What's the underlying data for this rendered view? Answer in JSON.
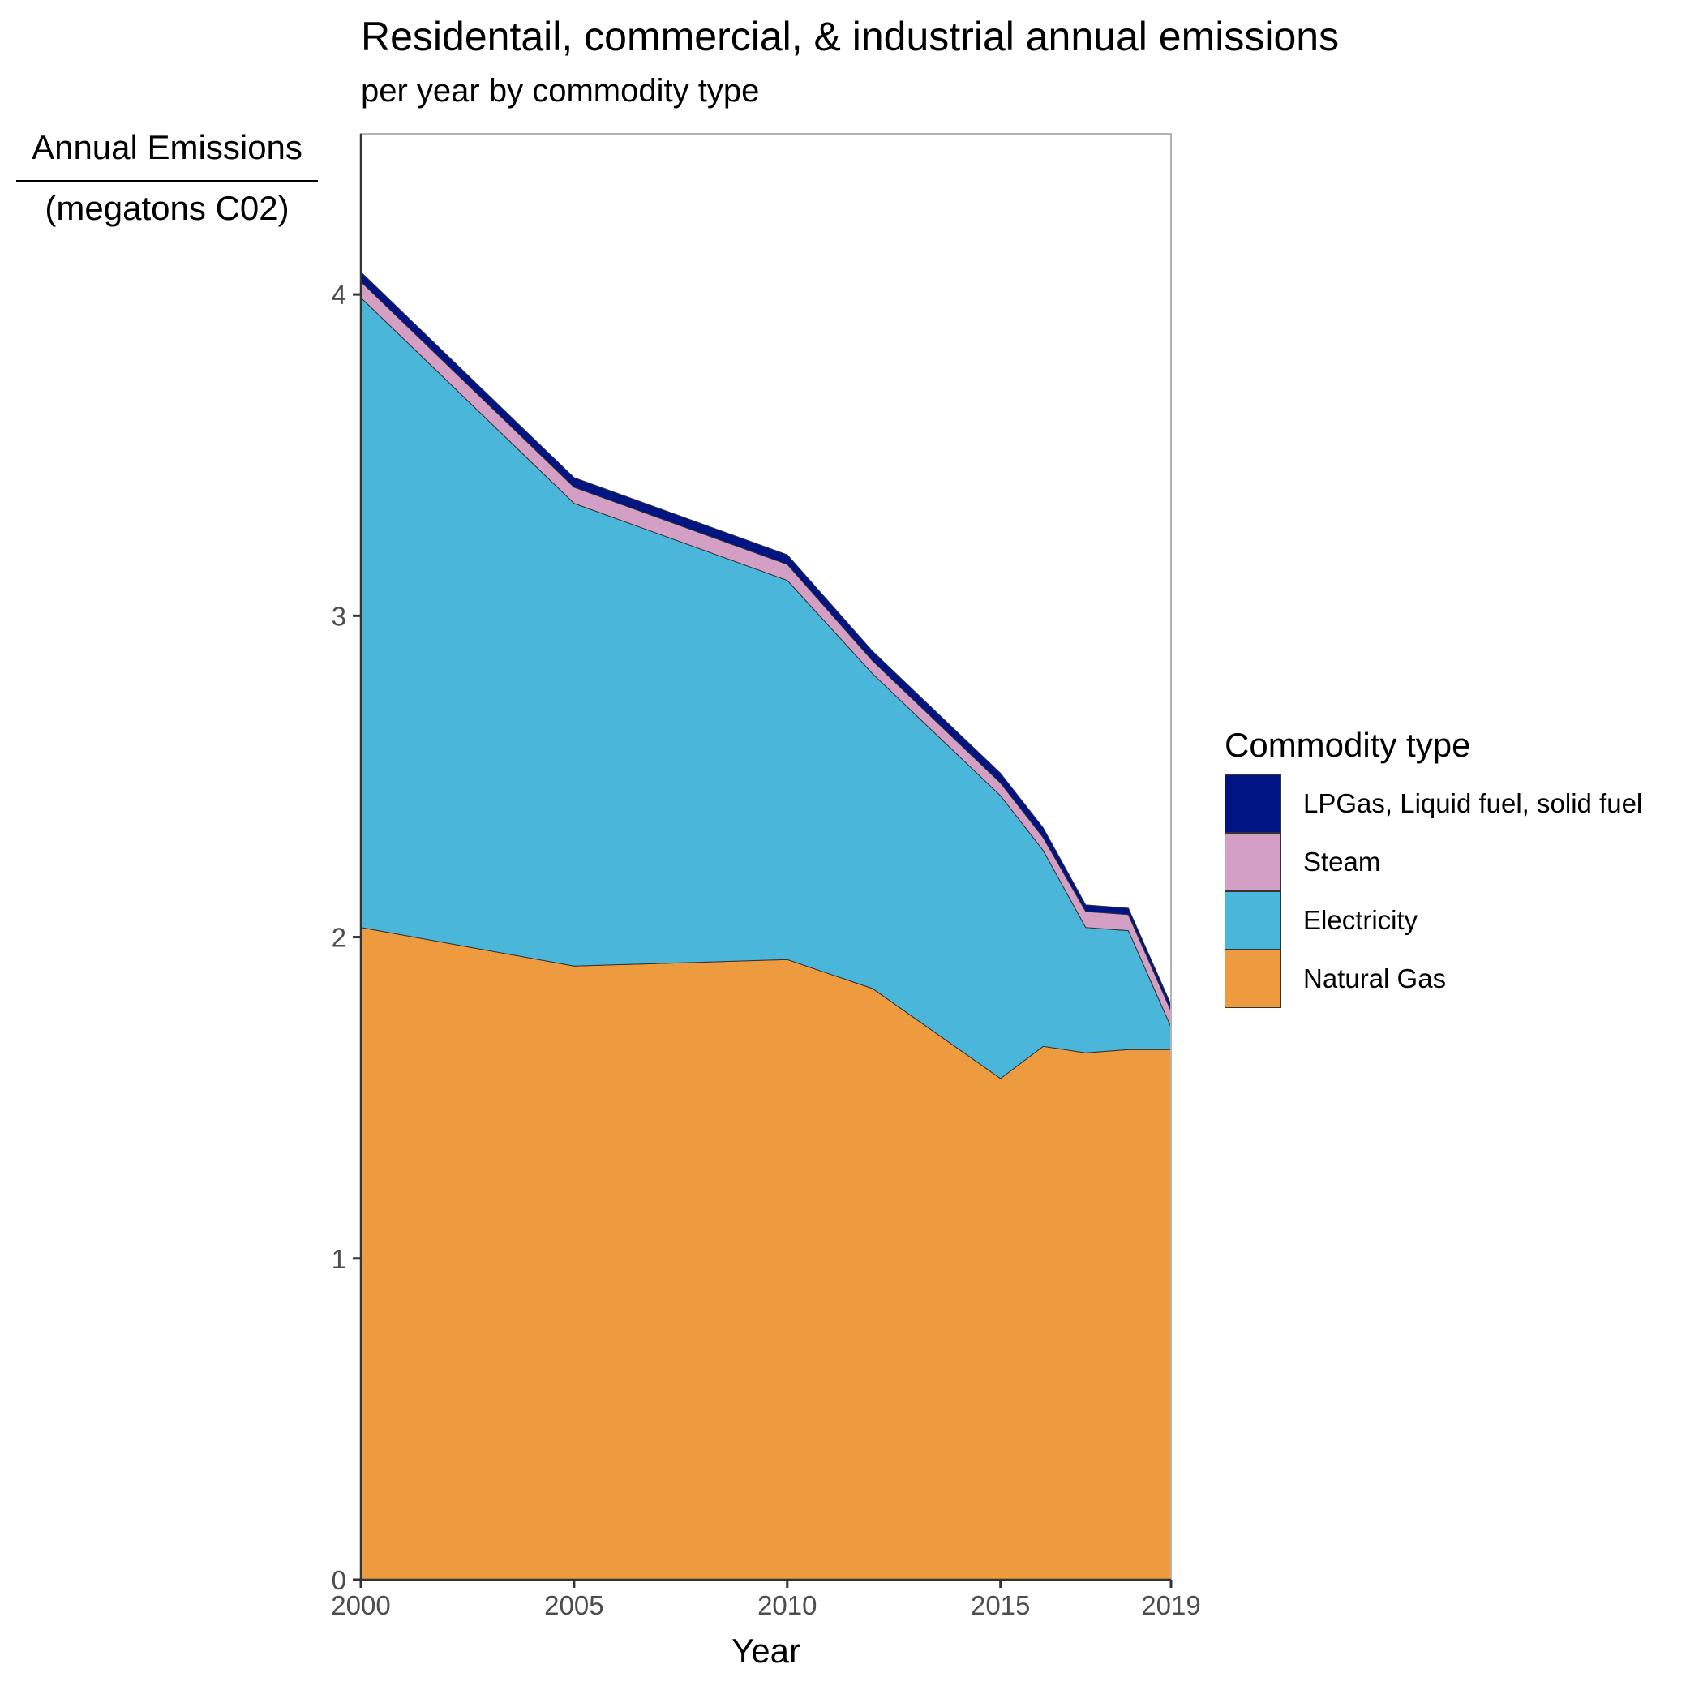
{
  "chart_data": {
    "type": "area",
    "stacked": true,
    "title": "Residentail, commercial, & industrial annual emissions",
    "subtitle": "per year by commodity type",
    "ylabel_top": "Annual Emissions",
    "ylabel_bottom": "(megatons C02)",
    "xlabel": "Year",
    "x": [
      2000,
      2005,
      2010,
      2012,
      2015,
      2016,
      2017,
      2018,
      2019
    ],
    "xlim": [
      2000,
      2019
    ],
    "ylim": [
      0,
      4.5
    ],
    "x_ticks": [
      "2000",
      "2005",
      "2010",
      "2015",
      "2019"
    ],
    "y_ticks": [
      "0",
      "1",
      "2",
      "3",
      "4"
    ],
    "grid": false,
    "legend_title": "Commodity type",
    "legend_position": "right",
    "series": [
      {
        "name": "Natural Gas",
        "color": "#EE9A3F",
        "values": [
          2.03,
          1.91,
          1.93,
          1.84,
          1.56,
          1.66,
          1.64,
          1.65,
          1.65
        ]
      },
      {
        "name": "Electricity",
        "color": "#4AB6DA",
        "values": [
          1.96,
          1.44,
          1.18,
          0.98,
          0.88,
          0.61,
          0.39,
          0.37,
          0.07
        ]
      },
      {
        "name": "Steam",
        "color": "#D49FC4",
        "values": [
          0.05,
          0.05,
          0.05,
          0.04,
          0.04,
          0.04,
          0.05,
          0.05,
          0.05
        ]
      },
      {
        "name": "LPGas, Liquid fuel, solid fuel",
        "color": "#001484",
        "values": [
          0.03,
          0.03,
          0.03,
          0.03,
          0.03,
          0.03,
          0.02,
          0.02,
          0.02
        ]
      }
    ]
  }
}
